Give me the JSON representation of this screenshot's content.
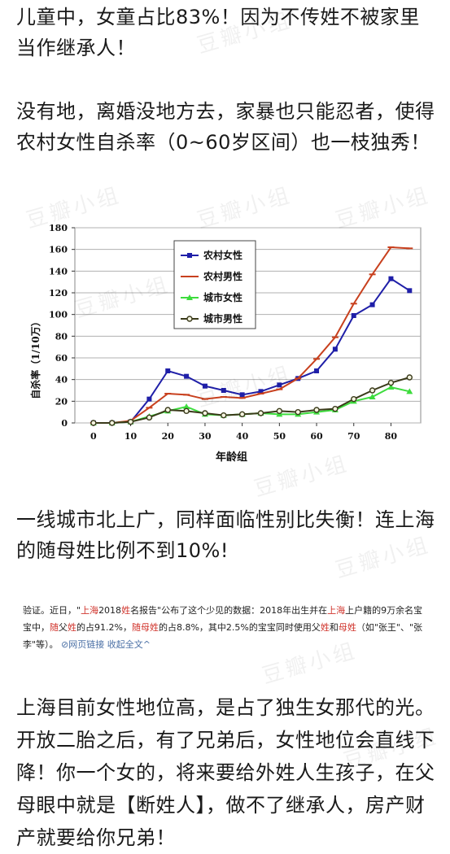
{
  "paragraphs": {
    "p1": "儿童中，女童占比83%！因为不传姓不被家里当作继承人！",
    "p2": "没有地，离婚没地方去，家暴也只能忍者，使得农村女性自杀率（0~60岁区间）也一枝独秀！",
    "p3": "一线城市北上广，同样面临性别比失衡！连上海的随母姓比例不到10%!",
    "p5": "上海目前女性地位高，是占了独生女那代的光。开放二胎之后，有了兄弟后，女性地位会直线下降！你一个女的，将来要给外姓人生孩子，在父母眼中就是【断姓人】，做不了继承人，房产财产就要给你兄弟！"
  },
  "quote": {
    "s1": "验证。近日，\"",
    "s2": "上海",
    "s3": "2018",
    "s4": "姓",
    "s5": "名报告\"公布了这个少见的数据：2018年出生并在",
    "s6": "上海",
    "s7": "上户籍的9万余名宝宝中，",
    "s8": "随",
    "s9": "父",
    "s10": "姓",
    "s11": "的占91.2%，",
    "s12": "随",
    "s13": "母",
    "s14": "姓",
    "s15": "的占8.8%，其中2.5%的宝宝同时使用父",
    "s16": "姓",
    "s17": "和",
    "s18": "母",
    "s19": "姓",
    "s20": "（如\"张王\"、\"张李\"等）。",
    "link_icon": "link-icon",
    "link_text": "网页链接",
    "expand_text": "收起全文",
    "expand_icon": "chevron-up-icon"
  },
  "watermark_text": "豆瓣小组",
  "colors": {
    "rural_female": "#1f1fa8",
    "rural_male": "#c8401e",
    "urban_female": "#3ddc3d",
    "urban_male": "#3a3a1a",
    "highlight_red": "#d0342c",
    "link_blue": "#4a6fa5"
  },
  "chart_data": {
    "type": "line",
    "xlabel": "年龄组",
    "ylabel": "自杀率（1/10万）",
    "xticks": [
      "0",
      "10",
      "20",
      "30",
      "40",
      "50",
      "60",
      "70",
      "80"
    ],
    "yticks": [
      "0",
      "20",
      "40",
      "60",
      "80",
      "100",
      "120",
      "140",
      "160",
      "180"
    ],
    "xlim": [
      -5,
      88
    ],
    "ylim": [
      0,
      180
    ],
    "x": [
      0,
      5,
      10,
      15,
      20,
      25,
      30,
      35,
      40,
      45,
      50,
      55,
      60,
      65,
      70,
      75,
      80,
      85
    ],
    "legend_position": "top-left",
    "grid": "horizontal",
    "series": [
      {
        "name": "农村女性",
        "color": "#1f1fa8",
        "marker": "square",
        "values": [
          0,
          0,
          1,
          22,
          48,
          43,
          34,
          30,
          26,
          29,
          35,
          41,
          48,
          68,
          99,
          109,
          133,
          122
        ]
      },
      {
        "name": "农村男性",
        "color": "#c8401e",
        "marker": "dash",
        "values": [
          0,
          0,
          2,
          14,
          27,
          26,
          22,
          24,
          23,
          27,
          31,
          41,
          59,
          79,
          110,
          137,
          162,
          161
        ]
      },
      {
        "name": "城市女性",
        "color": "#3ddc3d",
        "marker": "triangle",
        "values": [
          0,
          0,
          1,
          6,
          11,
          15,
          8,
          7,
          8,
          9,
          8,
          8,
          10,
          12,
          20,
          24,
          33,
          29
        ]
      },
      {
        "name": "城市男性",
        "color": "#3a3a1a",
        "marker": "circle",
        "values": [
          0,
          0,
          1,
          5,
          12,
          11,
          9,
          7,
          8,
          9,
          11,
          10,
          12,
          13,
          22,
          30,
          37,
          42
        ]
      }
    ]
  }
}
